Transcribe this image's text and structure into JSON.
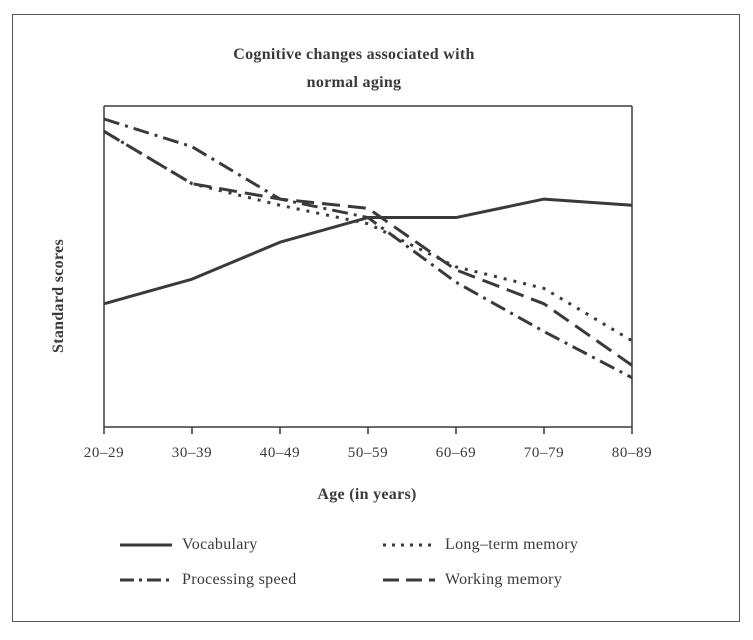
{
  "chart_data": {
    "type": "line",
    "title_line1": "Cognitive changes associated with",
    "title_line2": "normal aging",
    "xlabel": "Age (in years)",
    "ylabel": "Standard scores",
    "categories": [
      "20–29",
      "30–39",
      "40–49",
      "50–59",
      "60–69",
      "70–79",
      "80–89"
    ],
    "ylim": [
      0,
      100
    ],
    "y_ticks_shown": false,
    "grid": false,
    "legend_position": "bottom",
    "series": [
      {
        "name": "Vocabulary",
        "dash": "solid",
        "values": [
          40,
          48,
          60,
          68,
          68,
          74,
          72
        ]
      },
      {
        "name": "Long–term memory",
        "dash": "dot",
        "values": [
          96,
          79,
          72,
          66,
          52,
          45,
          28
        ]
      },
      {
        "name": "Processing speed",
        "dash": "dashdot",
        "values": [
          100,
          91,
          74,
          68,
          47,
          31,
          16
        ]
      },
      {
        "name": "Working memory",
        "dash": "dash",
        "values": [
          96,
          79,
          74,
          71,
          51,
          40,
          20
        ]
      }
    ]
  },
  "colors": {
    "line": "#3a3a3a",
    "frame": "#555555",
    "background": "#ffffff"
  }
}
